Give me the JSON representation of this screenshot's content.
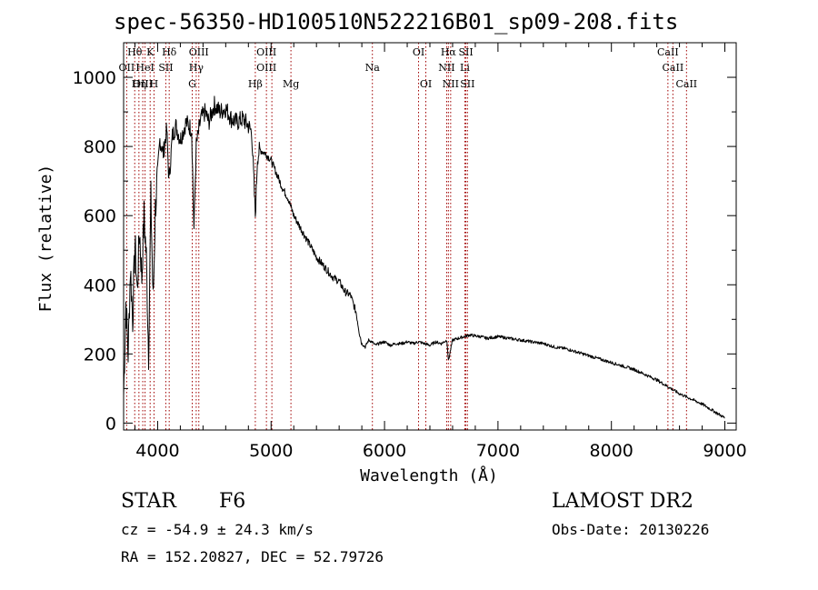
{
  "chart_data": {
    "type": "line",
    "title": "spec-56350-HD100510N522216B01_sp09-208.fits",
    "xlabel": "Wavelength (Å)",
    "ylabel": "Flux (relative)",
    "xlim": [
      3700,
      9100
    ],
    "ylim": [
      -20,
      1100
    ],
    "xticks": [
      4000,
      5000,
      6000,
      7000,
      8000,
      9000
    ],
    "yticks": [
      0,
      200,
      400,
      600,
      800,
      1000
    ],
    "grid": false,
    "series": [
      {
        "x": [
          3700,
          3720,
          3740,
          3760,
          3780,
          3800,
          3820,
          3840,
          3860,
          3880,
          3900,
          3920,
          3940,
          3960,
          3980,
          4000,
          4020,
          4050,
          4080,
          4100,
          4130,
          4160,
          4200,
          4250,
          4300,
          4320,
          4340,
          4380,
          4420,
          4450,
          4500,
          4550,
          4600,
          4650,
          4700,
          4750,
          4800,
          4830,
          4861,
          4880,
          4900,
          4950,
          5000,
          5050,
          5100,
          5150,
          5200,
          5250,
          5300,
          5350,
          5400,
          5450,
          5500,
          5550,
          5600,
          5650,
          5700,
          5750,
          5780,
          5800,
          5830,
          5860,
          5890,
          5920,
          5950,
          6000,
          6050,
          6100,
          6150,
          6200,
          6250,
          6300,
          6350,
          6400,
          6450,
          6500,
          6550,
          6563,
          6600,
          6650,
          6700,
          6750,
          6800,
          6850,
          6900,
          7000,
          7100,
          7200,
          7300,
          7400,
          7500,
          7600,
          7700,
          7800,
          7900,
          8000,
          8100,
          8200,
          8300,
          8400,
          8500,
          8600,
          8700,
          8800,
          8900,
          9000
        ],
        "y": [
          80,
          350,
          200,
          450,
          300,
          520,
          380,
          560,
          420,
          600,
          480,
          200,
          650,
          350,
          620,
          720,
          820,
          780,
          850,
          700,
          830,
          860,
          820,
          870,
          850,
          560,
          800,
          880,
          900,
          870,
          920,
          900,
          910,
          880,
          870,
          880,
          860,
          840,
          600,
          770,
          790,
          780,
          760,
          720,
          680,
          650,
          600,
          570,
          540,
          510,
          480,
          460,
          440,
          420,
          410,
          380,
          370,
          320,
          260,
          230,
          220,
          240,
          235,
          225,
          230,
          235,
          225,
          230,
          230,
          235,
          230,
          235,
          230,
          225,
          235,
          230,
          240,
          180,
          240,
          245,
          250,
          255,
          252,
          250,
          245,
          250,
          245,
          240,
          235,
          230,
          220,
          215,
          205,
          195,
          185,
          175,
          165,
          155,
          140,
          125,
          105,
          85,
          70,
          55,
          35,
          15
        ]
      }
    ],
    "line_labels": [
      {
        "text": "Hθ",
        "wave": 3798,
        "row": 1
      },
      {
        "text": "K",
        "wave": 3934,
        "row": 1
      },
      {
        "text": "Hδ",
        "wave": 4102,
        "row": 1
      },
      {
        "text": "OIII",
        "wave": 4363,
        "row": 1
      },
      {
        "text": "OIII",
        "wave": 4959,
        "row": 1
      },
      {
        "text": "OI",
        "wave": 6300,
        "row": 1
      },
      {
        "text": "Hα",
        "wave": 6563,
        "row": 1
      },
      {
        "text": "SII",
        "wave": 6717,
        "row": 1
      },
      {
        "text": "CaII",
        "wave": 8498,
        "row": 1
      },
      {
        "text": "OII",
        "wave": 3727,
        "row": 2
      },
      {
        "text": "HeI",
        "wave": 3889,
        "row": 2
      },
      {
        "text": "SII",
        "wave": 4072,
        "row": 2
      },
      {
        "text": "Hγ",
        "wave": 4340,
        "row": 2
      },
      {
        "text": "OIII",
        "wave": 4959,
        "row": 2
      },
      {
        "text": "Na",
        "wave": 5893,
        "row": 2
      },
      {
        "text": "NII",
        "wave": 6548,
        "row": 2
      },
      {
        "text": "Li",
        "wave": 6708,
        "row": 2
      },
      {
        "text": "CaII",
        "wave": 8542,
        "row": 2
      },
      {
        "text": "OIII",
        "wave": 3869,
        "row": 3
      },
      {
        "text": "Hη",
        "wave": 3835,
        "row": 3
      },
      {
        "text": "H",
        "wave": 3968,
        "row": 3
      },
      {
        "text": "G",
        "wave": 4305,
        "row": 3
      },
      {
        "text": "Hβ",
        "wave": 4861,
        "row": 3
      },
      {
        "text": "Mg",
        "wave": 5175,
        "row": 3
      },
      {
        "text": "OI",
        "wave": 6364,
        "row": 3
      },
      {
        "text": "NII",
        "wave": 6583,
        "row": 3
      },
      {
        "text": "SII",
        "wave": 6731,
        "row": 3
      },
      {
        "text": "CaII",
        "wave": 8662,
        "row": 3
      }
    ],
    "line_markers": [
      3727,
      3798,
      3835,
      3869,
      3889,
      3934,
      3968,
      4072,
      4102,
      4305,
      4340,
      4363,
      4861,
      4959,
      5007,
      5175,
      5893,
      6300,
      6364,
      6548,
      6563,
      6583,
      6708,
      6717,
      6731,
      8498,
      8542,
      8662
    ],
    "marker_color": "#a00000",
    "line_color": "#000000"
  },
  "info": {
    "class": "STAR",
    "subclass": "F6",
    "survey": "LAMOST DR2",
    "cz": "cz = -54.9 ± 24.3 km/s",
    "obs_date": "Obs-Date: 20130226",
    "coords": "RA = 152.20827, DEC =  52.79726"
  }
}
